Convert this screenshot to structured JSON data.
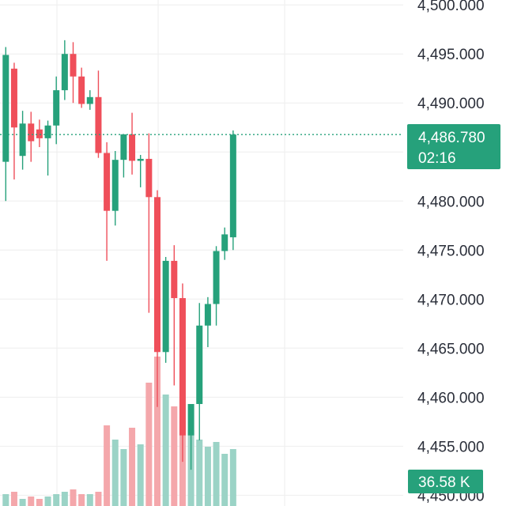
{
  "chart_data": {
    "type": "candlestick",
    "colors": {
      "up": "#26a17b",
      "down": "#ef4f5a",
      "up_volume": "#9bd3c6",
      "down_volume": "#f4a7ab",
      "price_line": "#26a17b",
      "grid": "#eeeeee",
      "text": "#2a2e39"
    },
    "y_axis": {
      "ylim": [
        4448.9,
        4500.5
      ],
      "ticks": [
        {
          "value": 4500,
          "label": "4,500.000"
        },
        {
          "value": 4495,
          "label": "4,495.000"
        },
        {
          "value": 4490,
          "label": "4,490.000"
        },
        {
          "value": 4480,
          "label": "4,480.000"
        },
        {
          "value": 4475,
          "label": "4,475.000"
        },
        {
          "value": 4470,
          "label": "4,470.000"
        },
        {
          "value": 4465,
          "label": "4,465.000"
        },
        {
          "value": 4460,
          "label": "4,460.000"
        },
        {
          "value": 4455,
          "label": "4,455.000"
        },
        {
          "value": 4450,
          "label": "4,450.000"
        }
      ]
    },
    "grid": true,
    "candles": [
      {
        "o": 4484.0,
        "h": 4495.7,
        "l": 4480.0,
        "c": 4494.9
      },
      {
        "o": 4493.5,
        "h": 4494.1,
        "l": 4482.2,
        "c": 4487.5
      },
      {
        "o": 4484.6,
        "h": 4489.2,
        "l": 4483.2,
        "c": 4487.9
      },
      {
        "o": 4487.9,
        "h": 4489.1,
        "l": 4484.0,
        "c": 4486.1
      },
      {
        "o": 4487.3,
        "h": 4488.3,
        "l": 4485.5,
        "c": 4486.4
      },
      {
        "o": 4486.4,
        "h": 4488.2,
        "l": 4482.6,
        "c": 4487.7
      },
      {
        "o": 4487.7,
        "h": 4492.7,
        "l": 4485.8,
        "c": 4491.3
      },
      {
        "o": 4491.3,
        "h": 4496.4,
        "l": 4490.3,
        "c": 4495.0
      },
      {
        "o": 4495.0,
        "h": 4496.2,
        "l": 4490.0,
        "c": 4492.7
      },
      {
        "o": 4492.7,
        "h": 4493.6,
        "l": 4489.5,
        "c": 4489.9
      },
      {
        "o": 4489.9,
        "h": 4491.3,
        "l": 4489.3,
        "c": 4490.6
      },
      {
        "o": 4490.6,
        "h": 4493.3,
        "l": 4484.4,
        "c": 4484.9
      },
      {
        "o": 4484.9,
        "h": 4486.0,
        "l": 4473.9,
        "c": 4479.0
      },
      {
        "o": 4479.0,
        "h": 4485.1,
        "l": 4477.5,
        "c": 4484.2
      },
      {
        "o": 4484.2,
        "h": 4486.4,
        "l": 4482.4,
        "c": 4486.8
      },
      {
        "o": 4486.8,
        "h": 4489.0,
        "l": 4482.7,
        "c": 4484.1
      },
      {
        "o": 4484.1,
        "h": 4484.7,
        "l": 4481.4,
        "c": 4484.3
      },
      {
        "o": 4484.3,
        "h": 4486.9,
        "l": 4468.6,
        "c": 4480.4
      },
      {
        "o": 4480.4,
        "h": 4481.1,
        "l": 4459.0,
        "c": 4464.6
      },
      {
        "o": 4464.6,
        "h": 4474.3,
        "l": 4463.5,
        "c": 4473.9
      },
      {
        "o": 4473.9,
        "h": 4475.5,
        "l": 4461.2,
        "c": 4470.1
      },
      {
        "o": 4470.1,
        "h": 4471.6,
        "l": 4453.4,
        "c": 4456.1
      },
      {
        "o": 4456.1,
        "h": 4459.1,
        "l": 4452.6,
        "c": 4459.3
      },
      {
        "o": 4459.3,
        "h": 4469.6,
        "l": 4455.6,
        "c": 4467.3
      },
      {
        "o": 4467.3,
        "h": 4470.2,
        "l": 4465.1,
        "c": 4469.5
      },
      {
        "o": 4469.5,
        "h": 4475.4,
        "l": 4467.3,
        "c": 4474.9
      },
      {
        "o": 4474.9,
        "h": 4477.3,
        "l": 4474.0,
        "c": 4476.6
      },
      {
        "o": 4476.3,
        "h": 4487.2,
        "l": 4475.0,
        "c": 4486.78
      }
    ],
    "volume": {
      "ylim": [
        0,
        100
      ],
      "values": [
        5,
        6,
        3,
        4,
        3,
        4,
        5,
        6,
        7,
        5,
        5,
        6,
        34,
        28,
        24,
        33,
        26,
        52,
        63,
        47,
        42,
        36,
        32,
        28,
        25,
        27,
        22,
        24
      ]
    },
    "price_label": {
      "value": "4,486.780",
      "countdown": "02:16"
    },
    "volume_label": "36.58 K"
  }
}
